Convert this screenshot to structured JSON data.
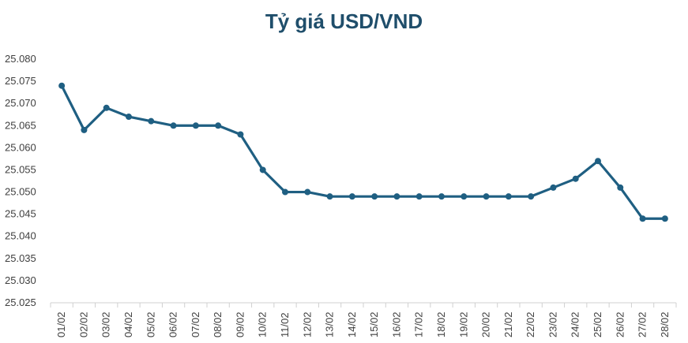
{
  "chart_data": {
    "type": "line",
    "title": "Tỷ giá USD/VND",
    "xlabel": "",
    "ylabel": "",
    "categories": [
      "01/02",
      "02/02",
      "03/02",
      "04/02",
      "05/02",
      "06/02",
      "07/02",
      "08/02",
      "09/02",
      "10/02",
      "11/02",
      "12/02",
      "13/02",
      "14/02",
      "15/02",
      "16/02",
      "17/02",
      "18/02",
      "19/02",
      "20/02",
      "21/02",
      "22/02",
      "23/02",
      "24/02",
      "25/02",
      "26/02",
      "27/02",
      "28/02"
    ],
    "values": [
      25074,
      25064,
      25069,
      25067,
      25066,
      25065,
      25065,
      25065,
      25063,
      25055,
      25050,
      25050,
      25049,
      25049,
      25049,
      25049,
      25049,
      25049,
      25049,
      25049,
      25049,
      25049,
      25051,
      25053,
      25057,
      25051,
      25044,
      25044
    ],
    "ylim": [
      25025,
      25080
    ],
    "yticks": [
      25025,
      25030,
      25035,
      25040,
      25045,
      25050,
      25055,
      25060,
      25065,
      25070,
      25075,
      25080
    ],
    "ytick_labels": [
      "25.025",
      "25.030",
      "25.035",
      "25.040",
      "25.045",
      "25.050",
      "25.055",
      "25.060",
      "25.065",
      "25.070",
      "25.075",
      "25.080"
    ],
    "series_color": "#1f5f82",
    "grid": false,
    "legend": "none"
  }
}
